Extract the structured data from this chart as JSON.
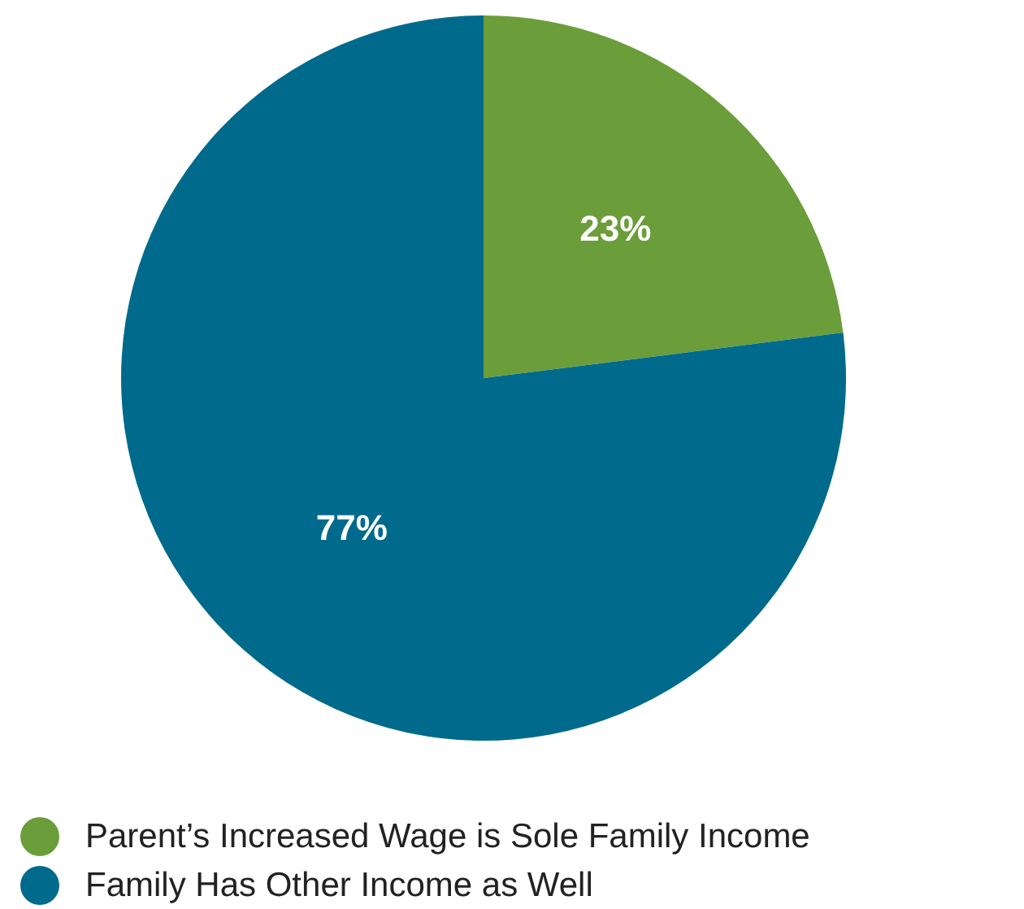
{
  "chart_data": {
    "type": "pie",
    "categories": [
      "Parent’s Increased Wage is Sole Family Income",
      "Family Has Other Income as Well"
    ],
    "values": [
      23,
      77
    ],
    "colors": [
      "#6b9d3a",
      "#006a8c"
    ],
    "value_labels": [
      "23%",
      "77%"
    ],
    "legend": "bottom"
  }
}
